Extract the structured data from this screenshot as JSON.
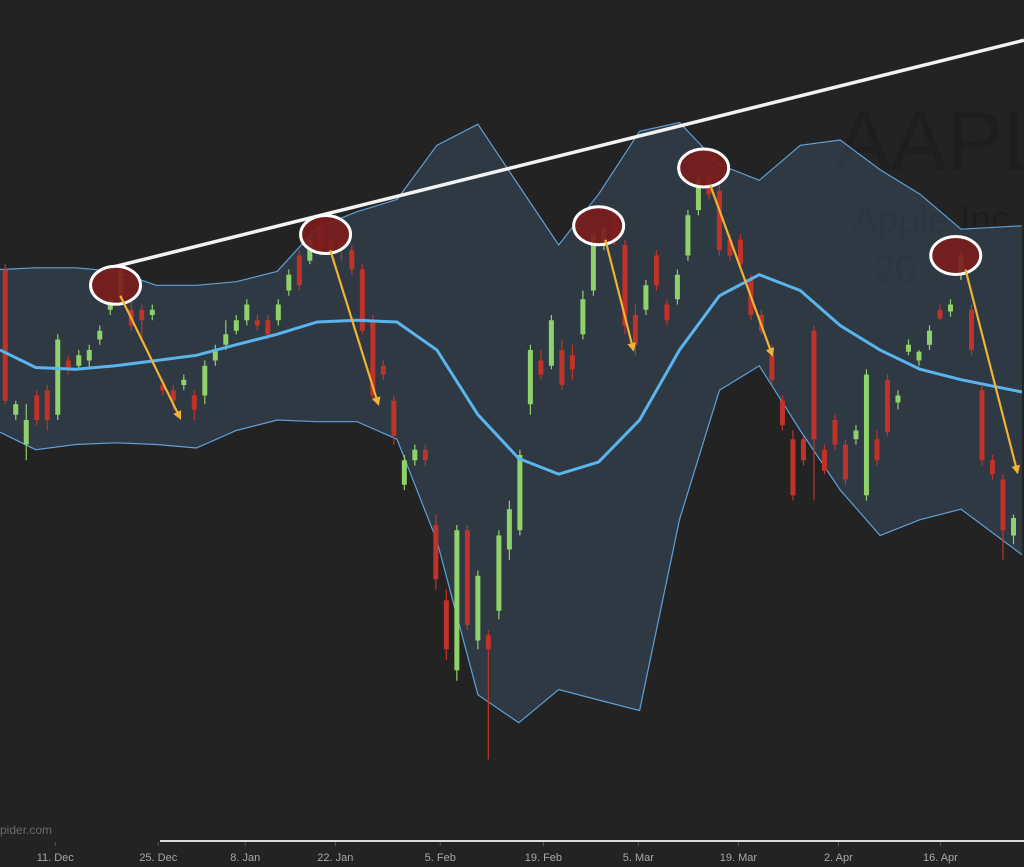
{
  "chart_data": {
    "type": "candlestick",
    "title": "AAPL",
    "subtitle": "Apple Inc",
    "caption": "20",
    "credits": "pider.com",
    "xlim": [
      -0.5,
      97.0
    ],
    "ylim": [
      146,
      194
    ],
    "xticks": [
      {
        "value": 4.76,
        "label": "11. Dec"
      },
      {
        "value": 14.57,
        "label": "25. Dec"
      },
      {
        "value": 22.85,
        "label": "8. Jan"
      },
      {
        "value": 31.43,
        "label": "22. Jan"
      },
      {
        "value": 41.42,
        "label": "5. Feb"
      },
      {
        "value": 51.24,
        "label": "19. Feb"
      },
      {
        "value": 60.28,
        "label": "5. Mar"
      },
      {
        "value": 69.81,
        "label": "19. Mar"
      },
      {
        "value": 79.33,
        "label": "2. Apr"
      },
      {
        "value": 89.04,
        "label": "16. Apr"
      }
    ],
    "up_color": "#8fd16b",
    "down_color": "#c0332a",
    "ohlc": {
      "x": [
        0,
        1,
        2,
        3,
        4,
        5,
        6,
        7,
        8,
        9,
        10,
        11,
        12,
        13,
        14,
        15,
        16,
        17,
        18,
        19,
        20,
        21,
        22,
        23,
        24,
        25,
        26,
        27,
        28,
        29,
        30,
        31,
        32,
        33,
        34,
        35,
        36,
        37,
        38,
        39,
        40,
        41,
        42,
        43,
        44,
        45,
        46,
        47,
        48,
        49,
        50,
        51,
        52,
        53,
        54,
        55,
        56,
        57,
        58,
        59,
        60,
        61,
        62,
        63,
        64,
        65,
        66,
        67,
        68,
        69,
        70,
        71,
        72,
        73,
        74,
        75,
        76,
        77,
        78,
        79,
        80,
        81,
        82,
        83,
        84,
        85,
        86,
        87,
        88,
        89,
        90,
        91,
        92,
        93,
        94,
        95,
        96
      ],
      "open": [
        178.6,
        170.3,
        168.6,
        171.4,
        171.7,
        170.3,
        173.4,
        173.1,
        173.4,
        174.6,
        176.3,
        176.9,
        176.3,
        176.3,
        176.0,
        172.0,
        171.7,
        172.0,
        171.4,
        171.4,
        173.4,
        174.3,
        175.1,
        175.7,
        175.7,
        175.7,
        175.7,
        177.4,
        179.4,
        179.1,
        181.1,
        180.3,
        180.3,
        179.7,
        178.6,
        175.7,
        173.1,
        171.1,
        166.3,
        167.7,
        168.3,
        164.0,
        159.7,
        155.7,
        163.7,
        157.4,
        157.7,
        159.1,
        162.6,
        163.7,
        170.9,
        173.4,
        173.1,
        174.0,
        173.7,
        174.9,
        177.4,
        180.0,
        181.7,
        180.0,
        176.0,
        176.3,
        179.4,
        176.6,
        176.9,
        179.4,
        182.0,
        184.0,
        183.1,
        180.3,
        180.3,
        178.0,
        176.0,
        173.7,
        171.1,
        168.9,
        168.9,
        175.1,
        168.3,
        170.0,
        168.6,
        168.9,
        165.7,
        168.9,
        172.3,
        171.0,
        173.9,
        173.4,
        174.3,
        176.3,
        176.2,
        178.3,
        176.3,
        171.7,
        167.7,
        166.6,
        163.4
      ],
      "high": [
        178.9,
        171.1,
        170.9,
        171.7,
        172.0,
        174.9,
        173.7,
        174.0,
        174.3,
        175.4,
        177.1,
        178.9,
        176.9,
        176.6,
        176.6,
        172.3,
        172.0,
        172.6,
        171.7,
        173.4,
        174.3,
        175.7,
        176.0,
        176.9,
        176.0,
        176.0,
        176.9,
        178.6,
        179.7,
        180.6,
        181.4,
        180.9,
        180.6,
        180.0,
        178.9,
        176.0,
        173.4,
        171.4,
        168.0,
        168.6,
        168.6,
        164.6,
        160.3,
        164.0,
        164.0,
        161.4,
        158.0,
        163.7,
        165.4,
        168.3,
        174.3,
        174.0,
        176.0,
        174.6,
        174.3,
        177.4,
        180.9,
        181.1,
        182.0,
        180.3,
        176.6,
        178.0,
        179.7,
        176.9,
        178.6,
        182.0,
        184.0,
        184.3,
        183.4,
        180.6,
        180.6,
        178.3,
        176.3,
        174.3,
        171.4,
        169.4,
        169.1,
        175.4,
        168.6,
        170.3,
        168.9,
        169.7,
        172.9,
        169.4,
        172.6,
        171.7,
        174.6,
        174.0,
        175.4,
        176.6,
        176.9,
        179.7,
        176.6,
        172.0,
        168.0,
        166.9,
        164.6
      ],
      "low": [
        170.9,
        170.0,
        167.7,
        169.7,
        169.4,
        170.0,
        172.6,
        172.9,
        172.9,
        174.3,
        176.0,
        176.6,
        175.1,
        174.6,
        175.7,
        171.4,
        170.6,
        171.7,
        170.0,
        170.9,
        173.1,
        174.0,
        174.9,
        175.4,
        175.1,
        174.6,
        175.4,
        177.1,
        177.4,
        178.9,
        179.4,
        179.4,
        179.1,
        178.3,
        174.9,
        171.1,
        172.3,
        168.6,
        166.0,
        167.4,
        167.4,
        160.3,
        156.3,
        155.1,
        158.0,
        156.9,
        150.6,
        158.6,
        162.0,
        163.4,
        170.3,
        172.3,
        172.9,
        171.7,
        172.3,
        174.6,
        177.1,
        179.7,
        180.0,
        174.9,
        173.7,
        176.0,
        177.4,
        175.4,
        176.6,
        179.1,
        181.7,
        182.6,
        179.4,
        179.1,
        178.6,
        175.7,
        174.9,
        172.0,
        169.4,
        165.4,
        167.4,
        165.4,
        166.9,
        168.3,
        166.3,
        168.6,
        165.4,
        167.4,
        169.1,
        170.6,
        173.7,
        173.1,
        174.0,
        175.7,
        175.9,
        178.0,
        173.7,
        167.4,
        166.6,
        162.0,
        162.9
      ],
      "close": [
        171.1,
        170.9,
        170.0,
        170.0,
        170.0,
        174.6,
        172.9,
        173.7,
        174.0,
        175.1,
        176.9,
        178.6,
        175.4,
        175.7,
        176.3,
        171.7,
        171.1,
        172.3,
        170.6,
        173.1,
        174.0,
        174.9,
        175.7,
        176.6,
        175.4,
        174.9,
        176.6,
        178.3,
        177.7,
        180.3,
        179.7,
        179.7,
        179.7,
        178.6,
        175.1,
        171.4,
        172.6,
        169.1,
        167.7,
        168.3,
        167.7,
        160.9,
        156.9,
        163.7,
        158.3,
        161.1,
        156.9,
        163.4,
        164.9,
        168.0,
        174.0,
        172.6,
        175.7,
        172.0,
        172.9,
        176.9,
        180.6,
        180.9,
        180.3,
        175.4,
        174.3,
        177.7,
        177.7,
        175.7,
        178.3,
        181.7,
        183.7,
        182.9,
        179.7,
        179.4,
        178.9,
        176.0,
        175.1,
        172.3,
        169.7,
        165.7,
        167.7,
        168.9,
        167.1,
        168.6,
        166.6,
        169.4,
        172.6,
        167.7,
        169.3,
        171.4,
        174.3,
        173.9,
        175.1,
        175.8,
        176.6,
        179.4,
        174.0,
        167.7,
        166.9,
        163.7,
        164.4
      ]
    },
    "bands": {
      "fill_color": "#4a6a8a",
      "line_color": "#5fa0d8",
      "middle_color": "#5ab4ee",
      "x": [
        -0.5,
        2.9,
        6.7,
        10.5,
        14.4,
        18.2,
        22.0,
        25.9,
        29.7,
        33.5,
        37.3,
        41.1,
        45.0,
        48.9,
        52.7,
        56.5,
        60.4,
        64.2,
        68.0,
        71.8,
        75.7,
        79.5,
        83.3,
        87.1,
        91.0,
        96.8
      ],
      "upper": [
        178.6,
        178.7,
        178.7,
        178.5,
        177.7,
        177.7,
        177.9,
        178.5,
        181.0,
        181.9,
        182.6,
        185.7,
        186.9,
        183.4,
        180.0,
        182.9,
        186.5,
        187.0,
        184.6,
        183.7,
        185.7,
        186.0,
        184.3,
        182.9,
        180.9,
        181.1
      ],
      "middle": [
        174.0,
        173.0,
        172.9,
        173.1,
        173.4,
        173.7,
        174.3,
        174.9,
        175.6,
        175.7,
        175.6,
        174.0,
        170.3,
        167.8,
        166.9,
        167.6,
        170.0,
        174.0,
        177.1,
        178.3,
        177.4,
        175.4,
        174.0,
        172.9,
        172.3,
        171.6
      ],
      "lower": [
        169.3,
        168.3,
        168.6,
        168.7,
        168.6,
        168.4,
        169.4,
        170.0,
        169.9,
        169.9,
        168.9,
        163.1,
        154.3,
        152.7,
        154.6,
        154.0,
        153.4,
        164.3,
        171.7,
        173.1,
        169.4,
        166.0,
        163.4,
        164.3,
        164.9,
        162.3
      ]
    },
    "trendline": {
      "color": "#f2f2f2",
      "x": [
        10.0,
        97.0
      ],
      "values": [
        178.7,
        191.7
      ]
    },
    "highlights": {
      "color": "#7a1c1c",
      "x": [
        10.5,
        30.5,
        56.5,
        66.5,
        90.5
      ],
      "values": [
        177.7,
        180.6,
        181.1,
        184.4,
        179.4
      ]
    },
    "arrows": {
      "color": "#f2b233",
      "x": [
        [
          10.95,
          16.66
        ],
        [
          30.95,
          35.52
        ],
        [
          57.14,
          59.81
        ],
        [
          67.14,
          73.04
        ],
        [
          91.43,
          96.38
        ]
      ],
      "values": [
        [
          177.1,
          170.1
        ],
        [
          179.7,
          170.9
        ],
        [
          180.3,
          174.0
        ],
        [
          183.4,
          173.7
        ],
        [
          178.6,
          167.0
        ]
      ]
    }
  }
}
